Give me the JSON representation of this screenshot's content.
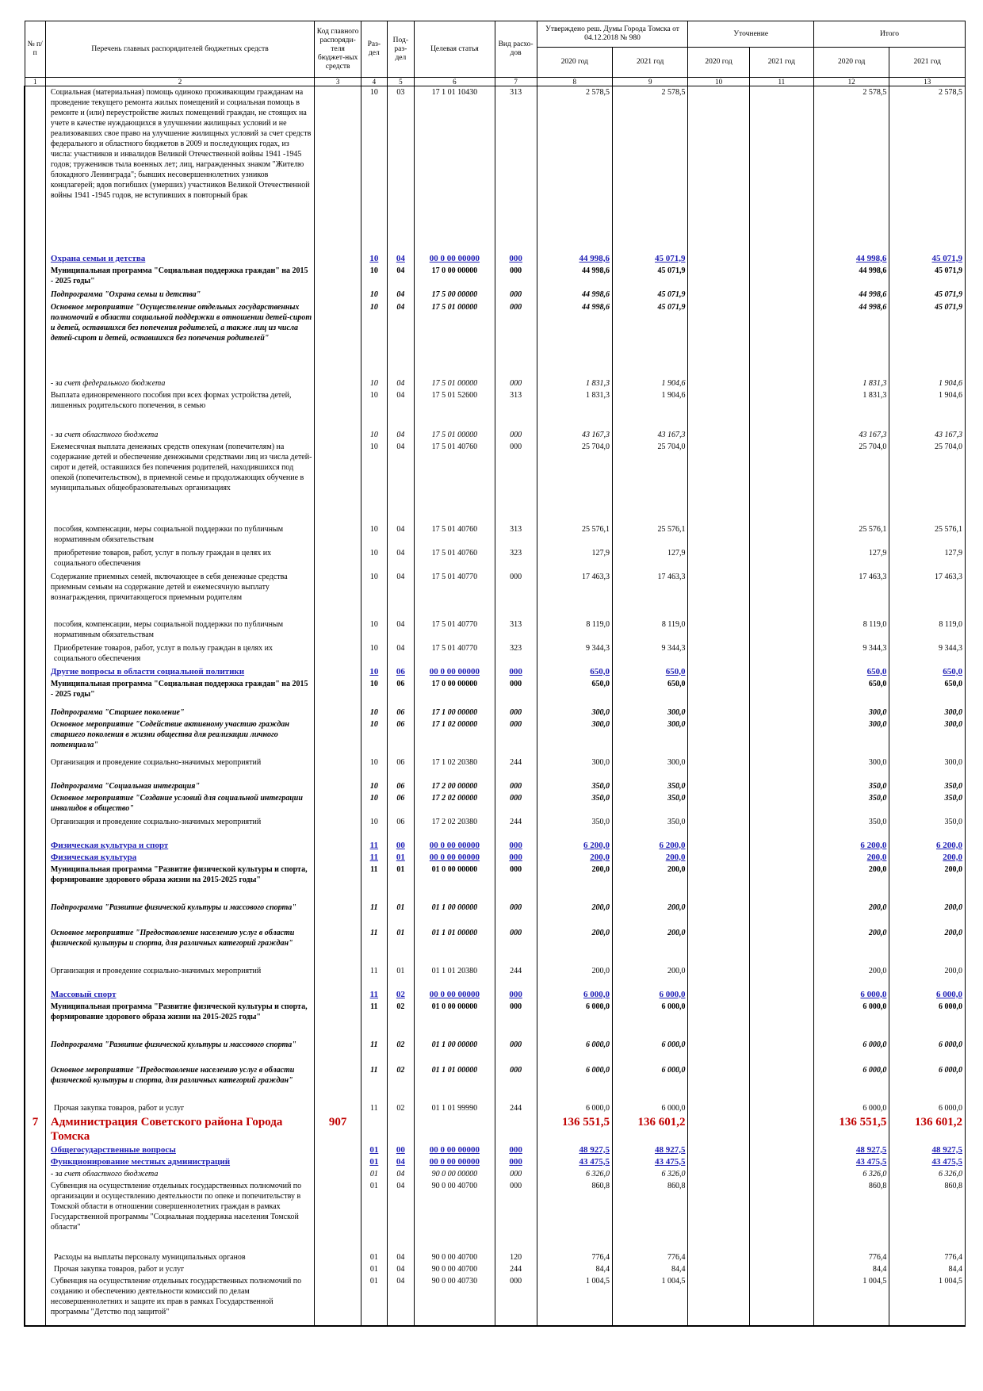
{
  "header": {
    "col_no": "№ п/п",
    "col_name": "Перечень главных распорядителей бюджетных средств",
    "col_code": "Код главного распоряди-теля бюджет-ных средств",
    "col_razdel": "Раз-дел",
    "col_podrazdel": "Под-раз-дел",
    "col_target": "Целевая статья",
    "col_type": "Вид расхо-дов",
    "group_approved": "Утверждено реш. Думы Города Томска от 04.12.2018 № 980",
    "group_clarify": "Уточнение",
    "group_total": "Итого",
    "y2020": "2020 год",
    "y2021": "2021 год",
    "colnums": [
      "1",
      "2",
      "3",
      "4",
      "5",
      "6",
      "7",
      "8",
      "9",
      "10",
      "11",
      "12",
      "13"
    ]
  },
  "rows": [
    {
      "style": "plain",
      "h": 210,
      "name": "Социальная (материальная) помощь одиноко проживающим гражданам на проведение текущего ремонта жилых помещений и социальная помощь в ремонте и (или) переустройстве жилых помещений граждан, не стоящих на учете в качестве нуждающихся в улучшении жилищных условий и не реализовавших свое право на улучшение жилищных условий за счет средств федерального и областного бюджетов в 2009 и последующих годах, из числа: участников и инвалидов Великой Отечественной войны 1941 -1945 годов; тружеников тыла военных лет; лиц, награжденных знаком \"Жителю блокадного Ленинграда\"; бывших несовершеннолетних узников концлагерей; вдов погибших (умерших) участников Великой Отечественной войны 1941 -1945 годов, не вступивших в повторный брак",
      "razdel": "10",
      "podrazdel": "03",
      "target": "17 1 01 10430",
      "type": "313",
      "a2020": "2 578,5",
      "a2021": "2 578,5",
      "t2020": "2 578,5",
      "t2021": "2 578,5"
    },
    {
      "style": "hl",
      "h": 14,
      "name": "Охрана семьи и детства",
      "razdel": "10",
      "podrazdel": "04",
      "target": "00 0 00 00000",
      "type": "000",
      "a2020": "44 998,6",
      "a2021": "45 071,9",
      "t2020": "44 998,6",
      "t2021": "45 071,9"
    },
    {
      "style": "bold",
      "h": 30,
      "name": "Муниципальная программа \"Социальная поддержка граждан\" на 2015 - 2025 годы\"",
      "razdel": "10",
      "podrazdel": "04",
      "target": "17 0 00 00000",
      "type": "000",
      "a2020": "44 998,6",
      "a2021": "45 071,9",
      "t2020": "44 998,6",
      "t2021": "45 071,9"
    },
    {
      "style": "bi",
      "h": 16,
      "name": "Подпрограмма \"Охрана семьи и детства\"",
      "razdel": "10",
      "podrazdel": "04",
      "target": "17 5 00 00000",
      "type": "000",
      "a2020": "44 998,6",
      "a2021": "45 071,9",
      "t2020": "44 998,6",
      "t2021": "45 071,9"
    },
    {
      "style": "bi",
      "h": 96,
      "name": "Основное мероприятие \"Осуществление отдельных государственных полномочий в области социальной поддержки в отношении детей-сирот и детей, оставшихся без попечения родителей, а также лиц из числа детей-сирот и детей, оставшихся без попечения родителей\"",
      "razdel": "10",
      "podrazdel": "04",
      "target": "17 5 01 00000",
      "type": "000",
      "a2020": "44 998,6",
      "a2021": "45 071,9",
      "t2020": "44 998,6",
      "t2021": "45 071,9"
    },
    {
      "style": "it",
      "h": 14,
      "name": "- за счет федерального бюджета",
      "razdel": "10",
      "podrazdel": "04",
      "target": "17 5 01 00000",
      "type": "000",
      "a2020": "1 831,3",
      "a2021": "1 904,6",
      "t2020": "1 831,3",
      "t2021": "1 904,6"
    },
    {
      "style": "plain",
      "h": 50,
      "name": "Выплата единовременного пособия при всех формах устройства детей, лишенных родительского попечения, в семью",
      "razdel": "10",
      "podrazdel": "04",
      "target": "17 5 01 52600",
      "type": "313",
      "a2020": "1 831,3",
      "a2021": "1 904,6",
      "t2020": "1 831,3",
      "t2021": "1 904,6"
    },
    {
      "style": "it",
      "h": 14,
      "name": "- за счет областного бюджета",
      "razdel": "10",
      "podrazdel": "04",
      "target": "17 5 01 00000",
      "type": "000",
      "a2020": "43 167,3",
      "a2021": "43 167,3",
      "t2020": "43 167,3",
      "t2021": "43 167,3"
    },
    {
      "style": "plain",
      "h": 104,
      "name": "Ежемесячная выплата денежных средств опекунам (попечителям) на содержание детей и обеспечение денежными средствами лиц из числа детей-сирот и детей, оставшихся без попечения родителей, находившихся под опекой (попечительством), в приемной семье и продолжающих обучение в муниципальных общеобразовательных организациях",
      "razdel": "10",
      "podrazdel": "04",
      "target": "17 5 01 40760",
      "type": "000",
      "a2020": "25 704,0",
      "a2021": "25 704,0",
      "t2020": "25 704,0",
      "t2021": "25 704,0"
    },
    {
      "style": "ind",
      "h": 30,
      "name": "пособия, компенсации, меры социальной поддержки по публичным нормативным обязательствам",
      "razdel": "10",
      "podrazdel": "04",
      "target": "17 5 01 40760",
      "type": "313",
      "a2020": "25 576,1",
      "a2021": "25 576,1",
      "t2020": "25 576,1",
      "t2021": "25 576,1"
    },
    {
      "style": "ind",
      "h": 30,
      "name": "приобретение товаров, работ, услуг в пользу граждан в целях их социального обеспечения",
      "razdel": "10",
      "podrazdel": "04",
      "target": "17 5 01 40760",
      "type": "323",
      "a2020": "127,9",
      "a2021": "127,9",
      "t2020": "127,9",
      "t2021": "127,9"
    },
    {
      "style": "plain",
      "h": 60,
      "name": "Содержание приемных семей, включающее в себя денежные средства приемным семьям на содержание детей и ежемесячную выплату вознаграждения, причитающегося приемным родителям",
      "razdel": "10",
      "podrazdel": "04",
      "target": "17 5 01 40770",
      "type": "000",
      "a2020": "17 463,3",
      "a2021": "17 463,3",
      "t2020": "17 463,3",
      "t2021": "17 463,3"
    },
    {
      "style": "ind",
      "h": 30,
      "name": "пособия, компенсации, меры социальной поддержки по публичным нормативным обязательствам",
      "razdel": "10",
      "podrazdel": "04",
      "target": "17 5 01 40770",
      "type": "313",
      "a2020": "8 119,0",
      "a2021": "8 119,0",
      "t2020": "8 119,0",
      "t2021": "8 119,0"
    },
    {
      "style": "ind",
      "h": 30,
      "name": "Приобретение товаров, работ, услуг в пользу граждан в целях их социального обеспечения",
      "razdel": "10",
      "podrazdel": "04",
      "target": "17 5 01 40770",
      "type": "323",
      "a2020": "9 344,3",
      "a2021": "9 344,3",
      "t2020": "9 344,3",
      "t2021": "9 344,3"
    },
    {
      "style": "hl",
      "h": 14,
      "name": "Другие вопросы в области социальной политики",
      "razdel": "10",
      "podrazdel": "06",
      "target": "00 0 00 00000",
      "type": "000",
      "a2020": "650,0",
      "a2021": "650,0",
      "t2020": "650,0",
      "t2021": "650,0"
    },
    {
      "style": "bold",
      "h": 36,
      "name": "Муниципальная программа \"Социальная поддержка граждан\" на 2015 - 2025 годы\"",
      "razdel": "10",
      "podrazdel": "06",
      "target": "17 0 00 00000",
      "type": "000",
      "a2020": "650,0",
      "a2021": "650,0",
      "t2020": "650,0",
      "t2021": "650,0"
    },
    {
      "style": "bi",
      "h": 14,
      "name": "Подпрограмма \"Старшее поколение\"",
      "razdel": "10",
      "podrazdel": "06",
      "target": "17 1 00 00000",
      "type": "000",
      "a2020": "300,0",
      "a2021": "300,0",
      "t2020": "300,0",
      "t2021": "300,0"
    },
    {
      "style": "bi",
      "h": 48,
      "name": "Основное мероприятие \"Содействие активному участию граждан старшего поколения в жизни общества для реализации личного потенциала\"",
      "razdel": "10",
      "podrazdel": "06",
      "target": "17 1 02 00000",
      "type": "000",
      "a2020": "300,0",
      "a2021": "300,0",
      "t2020": "300,0",
      "t2021": "300,0"
    },
    {
      "style": "plain",
      "h": 30,
      "name": "Организация и проведение социально-значимых мероприятий",
      "razdel": "10",
      "podrazdel": "06",
      "target": "17 1 02 20380",
      "type": "244",
      "a2020": "300,0",
      "a2021": "300,0",
      "t2020": "300,0",
      "t2021": "300,0"
    },
    {
      "style": "bi",
      "h": 14,
      "name": "Подпрограмма \"Социальная интеграция\"",
      "razdel": "10",
      "podrazdel": "06",
      "target": "17 2 00 00000",
      "type": "000",
      "a2020": "350,0",
      "a2021": "350,0",
      "t2020": "350,0",
      "t2021": "350,0"
    },
    {
      "style": "bi",
      "h": 30,
      "name": "Основное мероприятие \"Создание условий для социальной интеграции инвалидов в общество\"",
      "razdel": "10",
      "podrazdel": "06",
      "target": "17 2 02 00000",
      "type": "000",
      "a2020": "350,0",
      "a2021": "350,0",
      "t2020": "350,0",
      "t2021": "350,0"
    },
    {
      "style": "plain",
      "h": 30,
      "name": "Организация и проведение социально-значимых мероприятий",
      "razdel": "10",
      "podrazdel": "06",
      "target": "17 2 02 20380",
      "type": "244",
      "a2020": "350,0",
      "a2021": "350,0",
      "t2020": "350,0",
      "t2021": "350,0"
    },
    {
      "style": "hl",
      "h": 14,
      "name": "Физическая культура и спорт",
      "razdel": "11",
      "podrazdel": "00",
      "target": "00 0 00 00000",
      "type": "000",
      "a2020": "6 200,0",
      "a2021": "6 200,0",
      "t2020": "6 200,0",
      "t2021": "6 200,0"
    },
    {
      "style": "hl",
      "h": 14,
      "name": "Физическая культура",
      "razdel": "11",
      "podrazdel": "01",
      "target": "00 0 00 00000",
      "type": "000",
      "a2020": "200,0",
      "a2021": "200,0",
      "t2020": "200,0",
      "t2021": "200,0"
    },
    {
      "style": "bold",
      "h": 48,
      "name": "Муниципальная программа \"Развитие физической культуры и спорта, формирование здорового образа жизни на 2015-2025 годы\"",
      "razdel": "11",
      "podrazdel": "01",
      "target": "01 0 00 00000",
      "type": "000",
      "a2020": "200,0",
      "a2021": "200,0",
      "t2020": "200,0",
      "t2021": "200,0"
    },
    {
      "style": "bi",
      "h": 32,
      "name": "Подпрограмма \"Развитие физической культуры и массового спорта\"",
      "razdel": "11",
      "podrazdel": "01",
      "target": "01 1 00 00000",
      "type": "000",
      "a2020": "200,0",
      "a2021": "200,0",
      "t2020": "200,0",
      "t2021": "200,0"
    },
    {
      "style": "bi",
      "h": 48,
      "name": "Основное мероприятие \"Предоставление населению услуг в области физической культуры и спорта, для различных категорий граждан\"",
      "razdel": "11",
      "podrazdel": "01",
      "target": "01 1 01 00000",
      "type": "000",
      "a2020": "200,0",
      "a2021": "200,0",
      "t2020": "200,0",
      "t2021": "200,0"
    },
    {
      "style": "plain",
      "h": 30,
      "name": "Организация и проведение социально-значимых мероприятий",
      "razdel": "11",
      "podrazdel": "01",
      "target": "01 1 01 20380",
      "type": "244",
      "a2020": "200,0",
      "a2021": "200,0",
      "t2020": "200,0",
      "t2021": "200,0"
    },
    {
      "style": "hl",
      "h": 14,
      "name": "Массовый спорт",
      "razdel": "11",
      "podrazdel": "02",
      "target": "00 0 00 00000",
      "type": "000",
      "a2020": "6 000,0",
      "a2021": "6 000,0",
      "t2020": "6 000,0",
      "t2021": "6 000,0"
    },
    {
      "style": "bold",
      "h": 48,
      "name": "Муниципальная программа \"Развитие физической культуры и спорта, формирование здорового образа жизни на 2015-2025 годы\"",
      "razdel": "11",
      "podrazdel": "02",
      "target": "01 0 00 00000",
      "type": "000",
      "a2020": "6 000,0",
      "a2021": "6 000,0",
      "t2020": "6 000,0",
      "t2021": "6 000,0"
    },
    {
      "style": "bi",
      "h": 32,
      "name": "Подпрограмма \"Развитие физической культуры и массового спорта\"",
      "razdel": "11",
      "podrazdel": "02",
      "target": "01 1 00 00000",
      "type": "000",
      "a2020": "6 000,0",
      "a2021": "6 000,0",
      "t2020": "6 000,0",
      "t2021": "6 000,0"
    },
    {
      "style": "bi",
      "h": 48,
      "name": "Основное мероприятие \"Предоставление населению услуг в области физической культуры и спорта, для различных категорий граждан\"",
      "razdel": "11",
      "podrazdel": "02",
      "target": "01 1 01 00000",
      "type": "000",
      "a2020": "6 000,0",
      "a2021": "6 000,0",
      "t2020": "6 000,0",
      "t2021": "6 000,0"
    },
    {
      "style": "ind",
      "h": 14,
      "name": "Прочая закупка товаров, работ и услуг",
      "razdel": "11",
      "podrazdel": "02",
      "target": "01 1 01 99990",
      "type": "244",
      "a2020": "6 000,0",
      "a2021": "6 000,0",
      "t2020": "6 000,0",
      "t2021": "6 000,0"
    },
    {
      "style": "adm",
      "h": 38,
      "no": "7",
      "name": "Администрация Советского района Города Томска",
      "code": "907",
      "razdel": "",
      "podrazdel": "",
      "target": "",
      "type": "",
      "a2020": "136 551,5",
      "a2021": "136 601,2",
      "t2020": "136 551,5",
      "t2021": "136 601,2"
    },
    {
      "style": "hl",
      "h": 14,
      "name": "Общегосударственные вопросы",
      "razdel": "01",
      "podrazdel": "00",
      "target": "00 0 00 00000",
      "type": "000",
      "a2020": "48 927,5",
      "a2021": "48 927,5",
      "t2020": "48 927,5",
      "t2021": "48 927,5"
    },
    {
      "style": "hl",
      "h": 14,
      "name": "Функционирование местных администраций",
      "razdel": "01",
      "podrazdel": "04",
      "target": "00 0 00 00000",
      "type": "000",
      "a2020": "43 475,5",
      "a2021": "43 475,5",
      "t2020": "43 475,5",
      "t2021": "43 475,5"
    },
    {
      "style": "it",
      "h": 14,
      "name": "- за счет областного бюджета",
      "razdel": "01",
      "podrazdel": "04",
      "target": "90 0 00 00000",
      "type": "000",
      "a2020": "6 326,0",
      "a2021": "6 326,0",
      "t2020": "6 326,0",
      "t2021": "6 326,0"
    },
    {
      "style": "plain",
      "h": 90,
      "name": "Субвенция на осуществление отдельных государственных полномочий по организации и осуществлению деятельности по опеке и попечительству в Томской области в отношении совершеннолетних граждан в рамках Государственной программы \"Социальная поддержка населения Томской области\"",
      "razdel": "01",
      "podrazdel": "04",
      "target": "90 0 00 40700",
      "type": "000",
      "a2020": "860,8",
      "a2021": "860,8",
      "t2020": "860,8",
      "t2021": "860,8"
    },
    {
      "style": "ind",
      "h": 14,
      "name": "Расходы на выплаты персоналу муниципальных органов",
      "razdel": "01",
      "podrazdel": "04",
      "target": "90 0 00 40700",
      "type": "120",
      "a2020": "776,4",
      "a2021": "776,4",
      "t2020": "776,4",
      "t2021": "776,4"
    },
    {
      "style": "ind",
      "h": 14,
      "name": "Прочая закупка товаров, работ и услуг",
      "razdel": "01",
      "podrazdel": "04",
      "target": "90 0 00 40700",
      "type": "244",
      "a2020": "84,4",
      "a2021": "84,4",
      "t2020": "84,4",
      "t2021": "84,4"
    },
    {
      "style": "plain",
      "h": 64,
      "name": "Субвенция на осуществление отдельных государственных полномочий по созданию и обеспечению деятельности комиссий по делам несовершеннолетних и защите их прав в рамках Государственной программы \"Детство под защитой\"",
      "razdel": "01",
      "podrazdel": "04",
      "target": "90 0 00 40730",
      "type": "000",
      "a2020": "1 004,5",
      "a2021": "1 004,5",
      "t2020": "1 004,5",
      "t2021": "1 004,5"
    }
  ]
}
